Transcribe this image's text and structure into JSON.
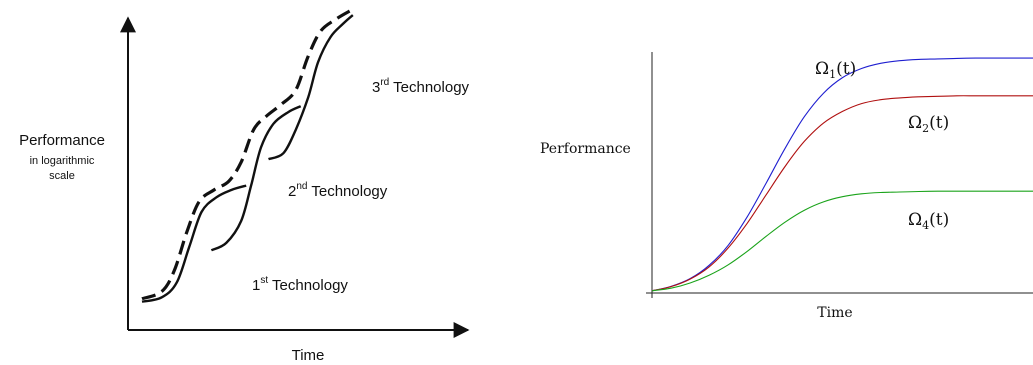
{
  "chart_data": [
    {
      "type": "line",
      "title": "",
      "xlabel": "Time",
      "ylabel": "Performance",
      "ylabel_sub": [
        "in logarithmic",
        "scale"
      ],
      "axis_style": "arrows",
      "ticks": "none",
      "grid": false,
      "xlim": [
        0,
        10
      ],
      "ylim": [
        0,
        10
      ],
      "series": [
        {
          "name": "1st Technology",
          "label_main": "1",
          "label_sup": "st",
          "label_rest": " Technology",
          "style": "solid",
          "x": [
            0,
            0.8,
            1.4,
            1.9,
            2.4,
            3.0,
            3.6,
            4.2
          ],
          "y": [
            0.35,
            0.5,
            1.0,
            2.2,
            3.4,
            3.9,
            4.15,
            4.3
          ]
        },
        {
          "name": "2nd Technology",
          "label_main": "2",
          "label_sup": "nd",
          "label_rest": " Technology",
          "style": "solid",
          "x": [
            2.8,
            3.4,
            4.0,
            4.4,
            4.8,
            5.3,
            5.9,
            6.4
          ],
          "y": [
            2.1,
            2.35,
            3.1,
            4.3,
            5.6,
            6.4,
            6.8,
            7.0
          ]
        },
        {
          "name": "3rd Technology",
          "label_main": "3",
          "label_sup": "rd",
          "label_rest": " Technology",
          "style": "solid",
          "x": [
            5.1,
            5.7,
            6.2,
            6.7,
            7.1,
            7.6,
            8.1,
            8.5
          ],
          "y": [
            5.2,
            5.4,
            6.2,
            7.3,
            8.5,
            9.35,
            9.8,
            10.1
          ]
        },
        {
          "name": "",
          "style": "dashed",
          "x": [
            0.0,
            0.8,
            1.3,
            1.8,
            2.3,
            2.9,
            3.5,
            4.0,
            4.5,
            5.0,
            5.6,
            6.2,
            6.7,
            7.2,
            7.8,
            8.4
          ],
          "y": [
            0.45,
            0.7,
            1.4,
            2.7,
            3.75,
            4.15,
            4.45,
            5.1,
            6.2,
            6.65,
            7.05,
            7.55,
            8.7,
            9.55,
            9.95,
            10.25
          ]
        }
      ]
    },
    {
      "type": "line",
      "title": "",
      "xlabel": "Time",
      "ylabel": "Performance",
      "ticks": "none",
      "grid": false,
      "xlim": [
        0,
        10
      ],
      "ylim": [
        0,
        10
      ],
      "series": [
        {
          "name": "Ω1(t)",
          "label_base": "Ω",
          "label_sub": "1",
          "label_arg": "(t)",
          "color": "#1f1fd0",
          "x": [
            0,
            0.5,
            1,
            1.5,
            2,
            2.5,
            3,
            3.5,
            4,
            4.5,
            5,
            5.5,
            6,
            6.5,
            7,
            7.5,
            8,
            8.5,
            9,
            9.5,
            10
          ],
          "y": [
            0.2,
            0.37,
            0.67,
            1.18,
            1.95,
            3.05,
            4.35,
            5.7,
            6.9,
            7.8,
            8.4,
            8.75,
            8.95,
            9.05,
            9.1,
            9.12,
            9.14,
            9.15,
            9.15,
            9.15,
            9.15
          ]
        },
        {
          "name": "Ω2(t)",
          "label_base": "Ω",
          "label_sub": "2",
          "label_arg": "(t)",
          "color": "#b01010",
          "x": [
            0,
            0.5,
            1,
            1.5,
            2,
            2.5,
            3,
            3.5,
            4,
            4.5,
            5,
            5.5,
            6,
            6.5,
            7,
            7.5,
            8,
            8.5,
            9,
            9.5,
            10
          ],
          "y": [
            0.2,
            0.36,
            0.65,
            1.12,
            1.85,
            2.8,
            3.9,
            5.0,
            5.95,
            6.65,
            7.1,
            7.4,
            7.55,
            7.62,
            7.66,
            7.68,
            7.7,
            7.7,
            7.7,
            7.7,
            7.7
          ]
        },
        {
          "name": "Ω4(t)",
          "label_base": "Ω",
          "label_sub": "4",
          "label_arg": "(t)",
          "color": "#1aa31a",
          "x": [
            0,
            0.5,
            1,
            1.5,
            2,
            2.5,
            3,
            3.5,
            4,
            4.5,
            5,
            5.5,
            6,
            6.5,
            7,
            7.5,
            8,
            8.5,
            9,
            9.5,
            10
          ],
          "y": [
            0.2,
            0.3,
            0.5,
            0.8,
            1.2,
            1.72,
            2.3,
            2.85,
            3.3,
            3.62,
            3.82,
            3.93,
            3.98,
            4.0,
            4.02,
            4.03,
            4.03,
            4.03,
            4.03,
            4.03,
            4.03
          ]
        }
      ]
    }
  ]
}
